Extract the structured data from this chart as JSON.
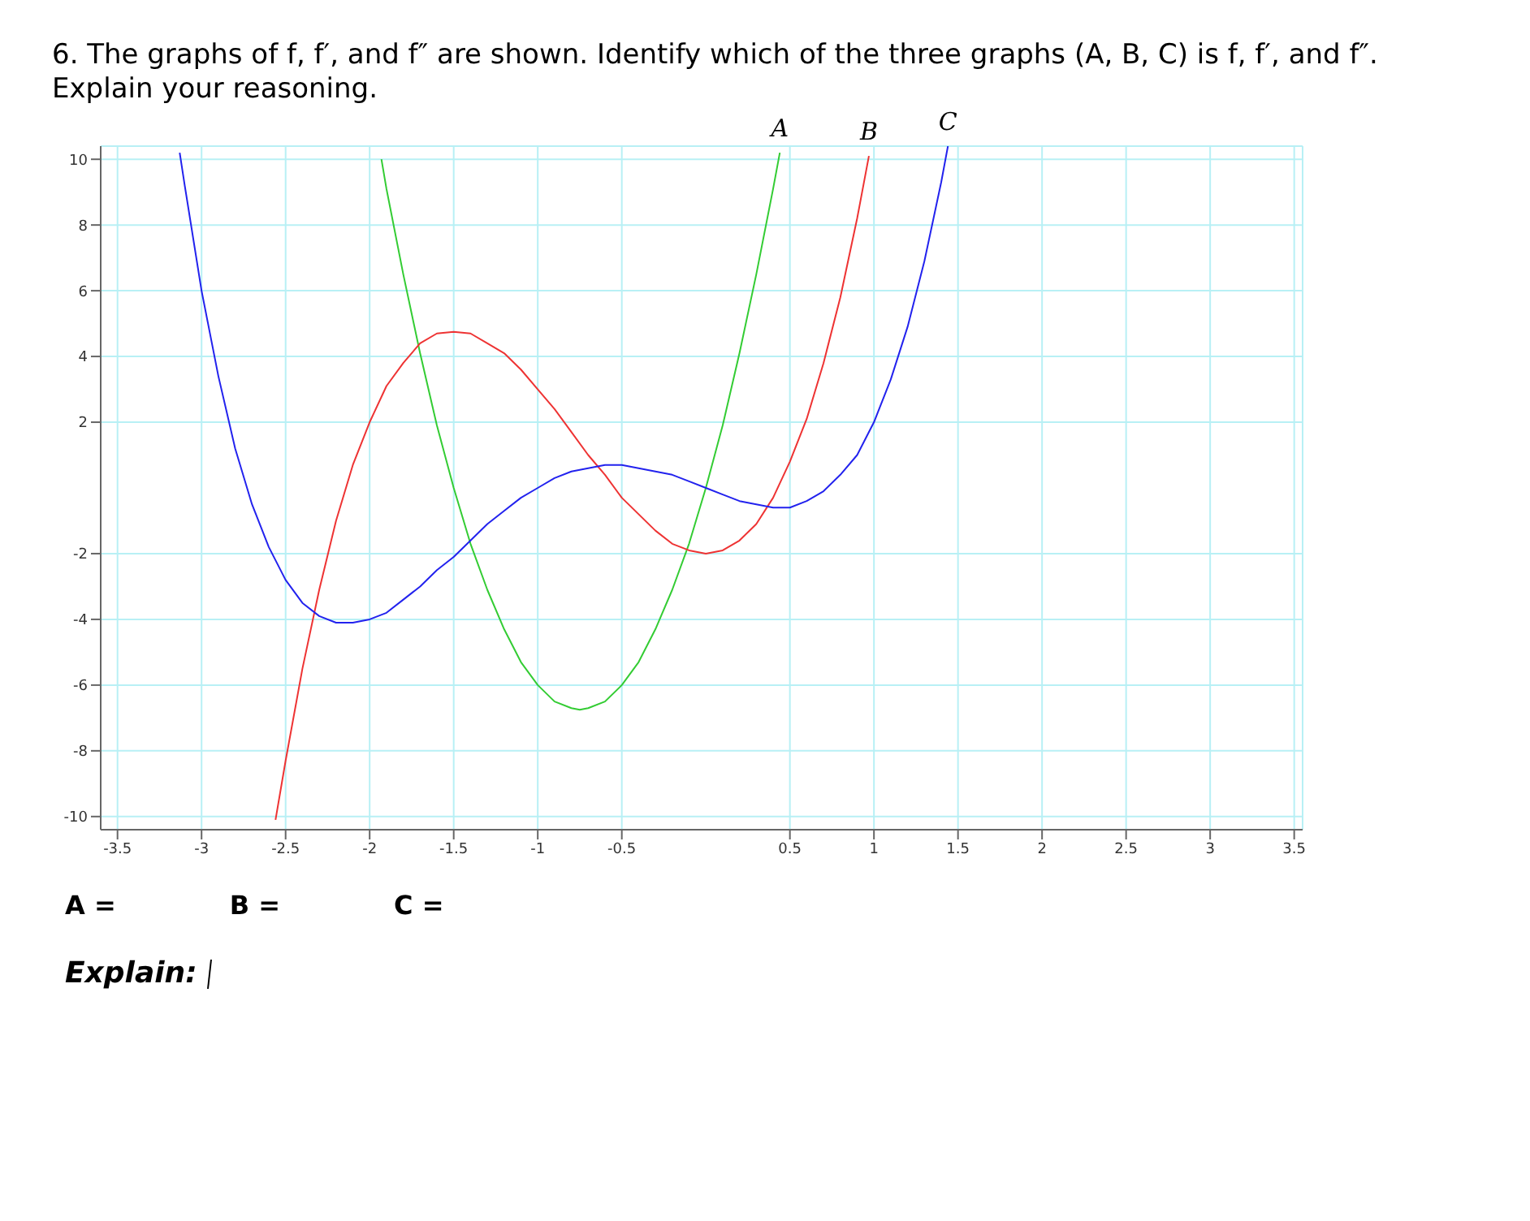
{
  "chart_data": {
    "type": "line",
    "title": "6. The graphs of f, f′, and f″ are shown. Identify which of the three graphs (A, B, C) is f, f′, and f″. Explain your reasoning.",
    "xlim": [
      -3.6,
      3.55
    ],
    "ylim": [
      -10.4,
      10.4
    ],
    "xticks": [
      -3.5,
      -3,
      -2.5,
      -2,
      -1.5,
      -1,
      -0.5,
      0.5,
      1,
      1.5,
      2,
      2.5,
      3,
      3.5
    ],
    "yticks": [
      -10,
      -8,
      -6,
      -4,
      -2,
      2,
      4,
      6,
      8,
      10
    ],
    "grid": true,
    "marker": "none",
    "line_style": "solid",
    "series": [
      {
        "name": "A",
        "color": "#33cc33",
        "x": [
          -1.93,
          -1.9,
          -1.8,
          -1.7,
          -1.6,
          -1.5,
          -1.4,
          -1.3,
          -1.2,
          -1.1,
          -1.0,
          -0.9,
          -0.8,
          -0.75,
          -0.7,
          -0.6,
          -0.5,
          -0.4,
          -0.3,
          -0.2,
          -0.1,
          0,
          0.1,
          0.2,
          0.3,
          0.4,
          0.44
        ],
        "values": [
          10.0,
          9.1,
          6.5,
          4.1,
          1.9,
          0,
          -1.7,
          -3.1,
          -4.3,
          -5.3,
          -6.0,
          -6.5,
          -6.7,
          -6.75,
          -6.7,
          -6.5,
          -6.0,
          -5.3,
          -4.3,
          -3.1,
          -1.7,
          0,
          1.9,
          4.1,
          6.5,
          9.1,
          10.2
        ]
      },
      {
        "name": "B",
        "color": "#ee3333",
        "x": [
          -2.56,
          -2.5,
          -2.4,
          -2.3,
          -2.2,
          -2.1,
          -2.0,
          -1.9,
          -1.8,
          -1.7,
          -1.6,
          -1.5,
          -1.4,
          -1.3,
          -1.2,
          -1.1,
          -1.0,
          -0.9,
          -0.8,
          -0.7,
          -0.6,
          -0.5,
          -0.4,
          -0.3,
          -0.2,
          -0.1,
          0,
          0.1,
          0.2,
          0.3,
          0.4,
          0.5,
          0.6,
          0.7,
          0.8,
          0.9,
          0.97
        ],
        "values": [
          -10.1,
          -8.3,
          -5.5,
          -3.1,
          -1.0,
          0.7,
          2.0,
          3.1,
          3.8,
          4.4,
          4.7,
          4.75,
          4.7,
          4.4,
          4.1,
          3.6,
          3.0,
          2.4,
          1.7,
          1.0,
          0.4,
          -0.3,
          -0.8,
          -1.3,
          -1.7,
          -1.9,
          -2.0,
          -1.9,
          -1.6,
          -1.1,
          -0.3,
          0.8,
          2.1,
          3.8,
          5.8,
          8.2,
          10.1
        ]
      },
      {
        "name": "C",
        "color": "#2222ee",
        "x": [
          -3.13,
          -3.1,
          -3.0,
          -2.9,
          -2.8,
          -2.7,
          -2.6,
          -2.5,
          -2.4,
          -2.3,
          -2.2,
          -2.1,
          -2.0,
          -1.9,
          -1.8,
          -1.7,
          -1.6,
          -1.5,
          -1.4,
          -1.3,
          -1.2,
          -1.1,
          -1.0,
          -0.9,
          -0.8,
          -0.7,
          -0.6,
          -0.5,
          -0.4,
          -0.3,
          -0.2,
          -0.1,
          0,
          0.1,
          0.2,
          0.3,
          0.4,
          0.5,
          0.6,
          0.7,
          0.8,
          0.9,
          1.0,
          1.1,
          1.2,
          1.3,
          1.4,
          1.44
        ],
        "values": [
          10.2,
          9.2,
          6.0,
          3.4,
          1.2,
          -0.5,
          -1.8,
          -2.8,
          -3.5,
          -3.9,
          -4.1,
          -4.1,
          -4.0,
          -3.8,
          -3.4,
          -3.0,
          -2.5,
          -2.1,
          -1.6,
          -1.1,
          -0.7,
          -0.3,
          0,
          0.3,
          0.5,
          0.6,
          0.7,
          0.7,
          0.6,
          0.5,
          0.4,
          0.2,
          0,
          -0.2,
          -0.4,
          -0.5,
          -0.6,
          -0.6,
          -0.4,
          -0.1,
          0.4,
          1.0,
          2.0,
          3.3,
          4.9,
          6.9,
          9.3,
          10.4
        ]
      }
    ],
    "annotations": [
      "A =",
      "B =",
      "C =",
      "Explain:"
    ]
  }
}
